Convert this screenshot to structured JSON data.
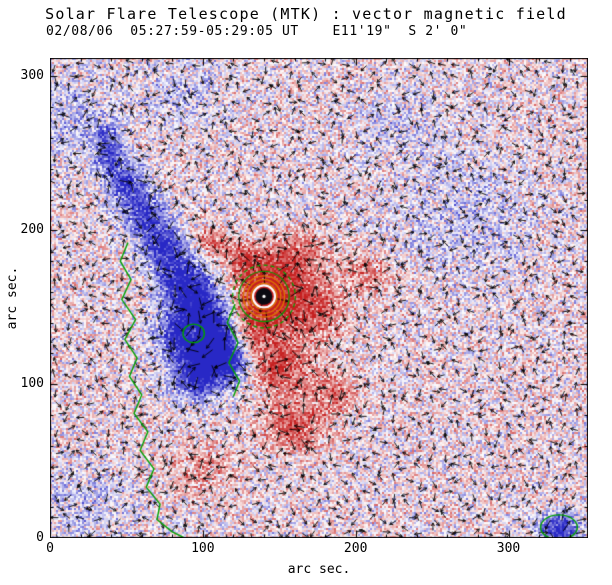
{
  "chart_data": {
    "type": "heatmap",
    "title": "Solar Flare Telescope (MTK) : vector magnetic field",
    "subtitle": "02/08/06  05:27:59-05:29:05 UT    E11'19\"  S 2' 0\"",
    "xlabel": "arc sec.",
    "ylabel": "arc sec.",
    "xlim": [
      0,
      352
    ],
    "ylim": [
      0,
      312
    ],
    "x_ticks": [
      0,
      100,
      200,
      300
    ],
    "y_ticks": [
      0,
      100,
      200,
      300
    ],
    "minor_tick_step": 20,
    "legend": "none",
    "grid": false,
    "colors": {
      "positive": "#c62020",
      "negative": "#2828c6",
      "contour_green": "#00a000",
      "contour_orange": "#dd7700",
      "axis": "#000000",
      "background": "#ffffff",
      "sunspot_core": "#0b0b12",
      "arrow": "#000000"
    },
    "noise": {
      "bias": 0.05,
      "amp": 0.75,
      "cell": 2,
      "seed": 7
    },
    "sunspot": {
      "x": 140,
      "y": 157,
      "core_radius": 5.5,
      "white_ring": 7.2,
      "orange_radii": [
        8.5,
        11,
        13.5
      ],
      "green_radii": [
        16.5,
        20.5
      ]
    },
    "blobs": [
      {
        "x": 38,
        "y": 252,
        "sx": 7,
        "sy": 11,
        "amp": -0.9
      },
      {
        "x": 50,
        "y": 230,
        "sx": 9,
        "sy": 10,
        "amp": -1.0
      },
      {
        "x": 62,
        "y": 210,
        "sx": 10,
        "sy": 10,
        "amp": -1.0
      },
      {
        "x": 74,
        "y": 190,
        "sx": 10,
        "sy": 10,
        "amp": -1.05
      },
      {
        "x": 86,
        "y": 170,
        "sx": 11,
        "sy": 11,
        "amp": -1.1
      },
      {
        "x": 97,
        "y": 152,
        "sx": 12,
        "sy": 12,
        "amp": -1.15
      },
      {
        "x": 108,
        "y": 133,
        "sx": 12,
        "sy": 12,
        "amp": -1.15
      },
      {
        "x": 117,
        "y": 115,
        "sx": 11,
        "sy": 11,
        "amp": -1.1
      },
      {
        "x": 100,
        "y": 120,
        "sx": 13,
        "sy": 12,
        "amp": -1.0
      },
      {
        "x": 84,
        "y": 133,
        "sx": 11,
        "sy": 11,
        "amp": -0.9
      },
      {
        "x": 95,
        "y": 103,
        "sx": 11,
        "sy": 10,
        "amp": -0.95
      },
      {
        "x": 15,
        "y": 272,
        "sx": 22,
        "sy": 20,
        "amp": -0.35
      },
      {
        "x": 85,
        "y": 290,
        "sx": 18,
        "sy": 14,
        "amp": -0.3
      },
      {
        "x": 270,
        "y": 205,
        "sx": 32,
        "sy": 28,
        "amp": -0.28
      },
      {
        "x": 230,
        "y": 268,
        "sx": 20,
        "sy": 16,
        "amp": -0.25
      },
      {
        "x": 25,
        "y": 22,
        "sx": 20,
        "sy": 16,
        "amp": -0.3
      },
      {
        "x": 333,
        "y": 6,
        "sx": 9,
        "sy": 7,
        "amp": -1.2
      },
      {
        "x": 140,
        "y": 157,
        "sx": 13,
        "sy": 13,
        "amp": 1.35
      },
      {
        "x": 160,
        "y": 182,
        "sx": 14,
        "sy": 12,
        "amp": 0.8
      },
      {
        "x": 128,
        "y": 180,
        "sx": 10,
        "sy": 9,
        "amp": 0.7
      },
      {
        "x": 107,
        "y": 192,
        "sx": 8,
        "sy": 7,
        "amp": 0.65
      },
      {
        "x": 170,
        "y": 148,
        "sx": 16,
        "sy": 14,
        "amp": 0.85
      },
      {
        "x": 150,
        "y": 112,
        "sx": 14,
        "sy": 13,
        "amp": 0.9
      },
      {
        "x": 128,
        "y": 132,
        "sx": 10,
        "sy": 10,
        "amp": 0.75
      },
      {
        "x": 160,
        "y": 72,
        "sx": 14,
        "sy": 11,
        "amp": 0.8
      },
      {
        "x": 185,
        "y": 95,
        "sx": 12,
        "sy": 10,
        "amp": 0.6
      },
      {
        "x": 210,
        "y": 172,
        "sx": 12,
        "sy": 9,
        "amp": 0.5
      },
      {
        "x": 100,
        "y": 45,
        "sx": 14,
        "sy": 12,
        "amp": 0.45
      },
      {
        "x": 94,
        "y": 133,
        "sx": 4,
        "sy": 4,
        "amp": 0.95
      }
    ],
    "green_paths": [
      [
        [
          51,
          192
        ],
        [
          46,
          180
        ],
        [
          53,
          168
        ],
        [
          47,
          155
        ],
        [
          56,
          142
        ],
        [
          49,
          129
        ],
        [
          57,
          117
        ],
        [
          52,
          105
        ],
        [
          60,
          93
        ],
        [
          55,
          81
        ],
        [
          64,
          69
        ],
        [
          59,
          57
        ],
        [
          68,
          45
        ],
        [
          63,
          33
        ],
        [
          72,
          22
        ],
        [
          70,
          12
        ],
        [
          80,
          4
        ],
        [
          88,
          0
        ]
      ],
      [
        [
          121,
          152
        ],
        [
          116,
          140
        ],
        [
          123,
          127
        ],
        [
          117,
          114
        ],
        [
          124,
          102
        ],
        [
          120,
          92
        ]
      ]
    ],
    "green_loops": [
      {
        "cx": 94,
        "cy": 133,
        "rx": 7,
        "ry": 6
      },
      {
        "cx": 333,
        "cy": 7,
        "rx": 12,
        "ry": 8
      }
    ],
    "arrows": {
      "spacing": 13,
      "jitter": 2,
      "base_len": 7.5,
      "len_scale": 4,
      "radial_radius": 46
    }
  }
}
